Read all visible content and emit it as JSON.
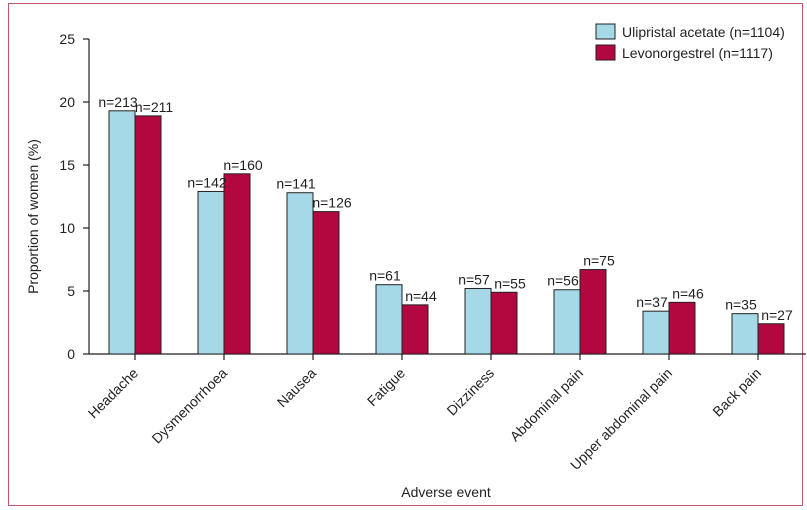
{
  "chart_data": {
    "type": "bar",
    "title": "",
    "xlabel": "Adverse event",
    "ylabel": "Proportion of women (%)",
    "ylim": [
      0,
      25
    ],
    "yticks": [
      0,
      5,
      10,
      15,
      20,
      25
    ],
    "grid": false,
    "legend_position": "top-right",
    "categories": [
      "Headache",
      "Dysmenorrhoea",
      "Nausea",
      "Fatigue",
      "Dizziness",
      "Abdominal pain",
      "Upper abdominal pain",
      "Back pain"
    ],
    "series": [
      {
        "name": "Ulipristal acetate (n=1104)",
        "color": "#a6d9e8",
        "values": [
          19.3,
          12.9,
          12.8,
          5.5,
          5.2,
          5.1,
          3.4,
          3.2
        ],
        "labels": [
          "n=213",
          "n=142",
          "n=141",
          "n=61",
          "n=57",
          "n=56",
          "n=37",
          "n=35"
        ]
      },
      {
        "name": "Levonorgestrel (n=1117)",
        "color": "#b3083f",
        "values": [
          18.9,
          14.3,
          11.3,
          3.9,
          4.9,
          6.7,
          4.1,
          2.4
        ],
        "labels": [
          "n=211",
          "n=160",
          "n=126",
          "n=44",
          "n=55",
          "n=75",
          "n=46",
          "n=27"
        ]
      }
    ]
  }
}
